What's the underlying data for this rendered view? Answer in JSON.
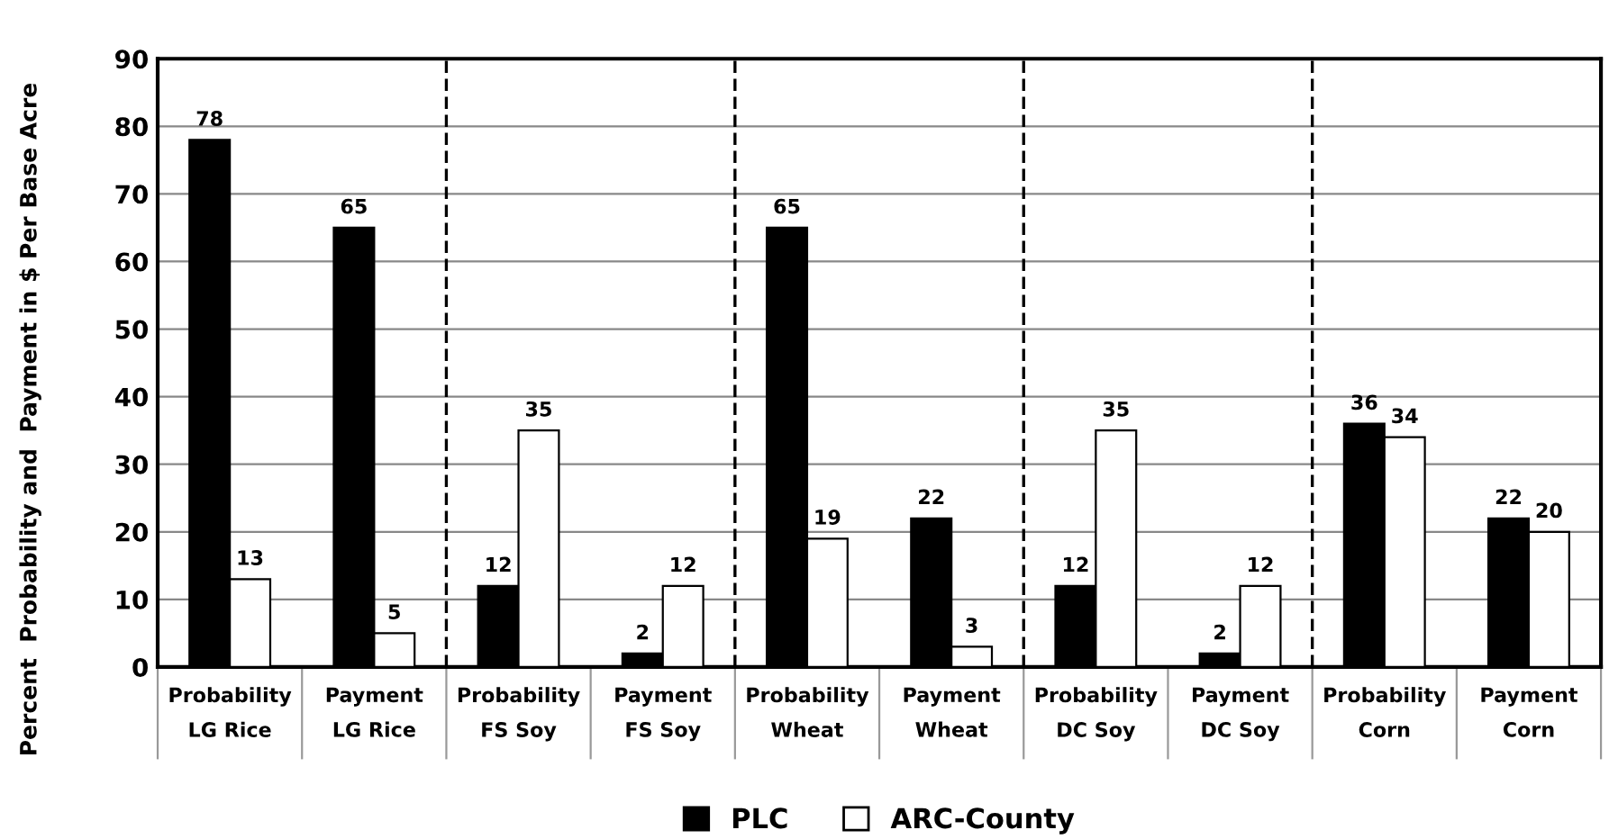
{
  "chart_data": {
    "type": "bar",
    "ylabel": "Percent  Probability and  Payment in $ Per Base Acre",
    "categories": [
      "Probability\nLG Rice",
      "Payment\nLG Rice",
      "Probability\nFS Soy",
      "Payment\nFS Soy",
      "Probability\nWheat",
      "Payment\nWheat",
      "Probability\nDC Soy",
      "Payment\nDC Soy",
      "Probability\nCorn",
      "Payment\nCorn"
    ],
    "series": [
      {
        "name": "PLC",
        "color": "#000000",
        "values": [
          78,
          65,
          12,
          2,
          65,
          22,
          12,
          2,
          36,
          22
        ]
      },
      {
        "name": "ARC-County",
        "color": "#ffffff",
        "values": [
          13,
          5,
          35,
          12,
          19,
          3,
          35,
          12,
          34,
          20
        ]
      }
    ],
    "ylim": [
      0,
      90
    ],
    "yticks": [
      0,
      10,
      20,
      30,
      40,
      50,
      60,
      70,
      80,
      90
    ],
    "grid": "y",
    "data_labels": true,
    "legend": "bottom"
  }
}
